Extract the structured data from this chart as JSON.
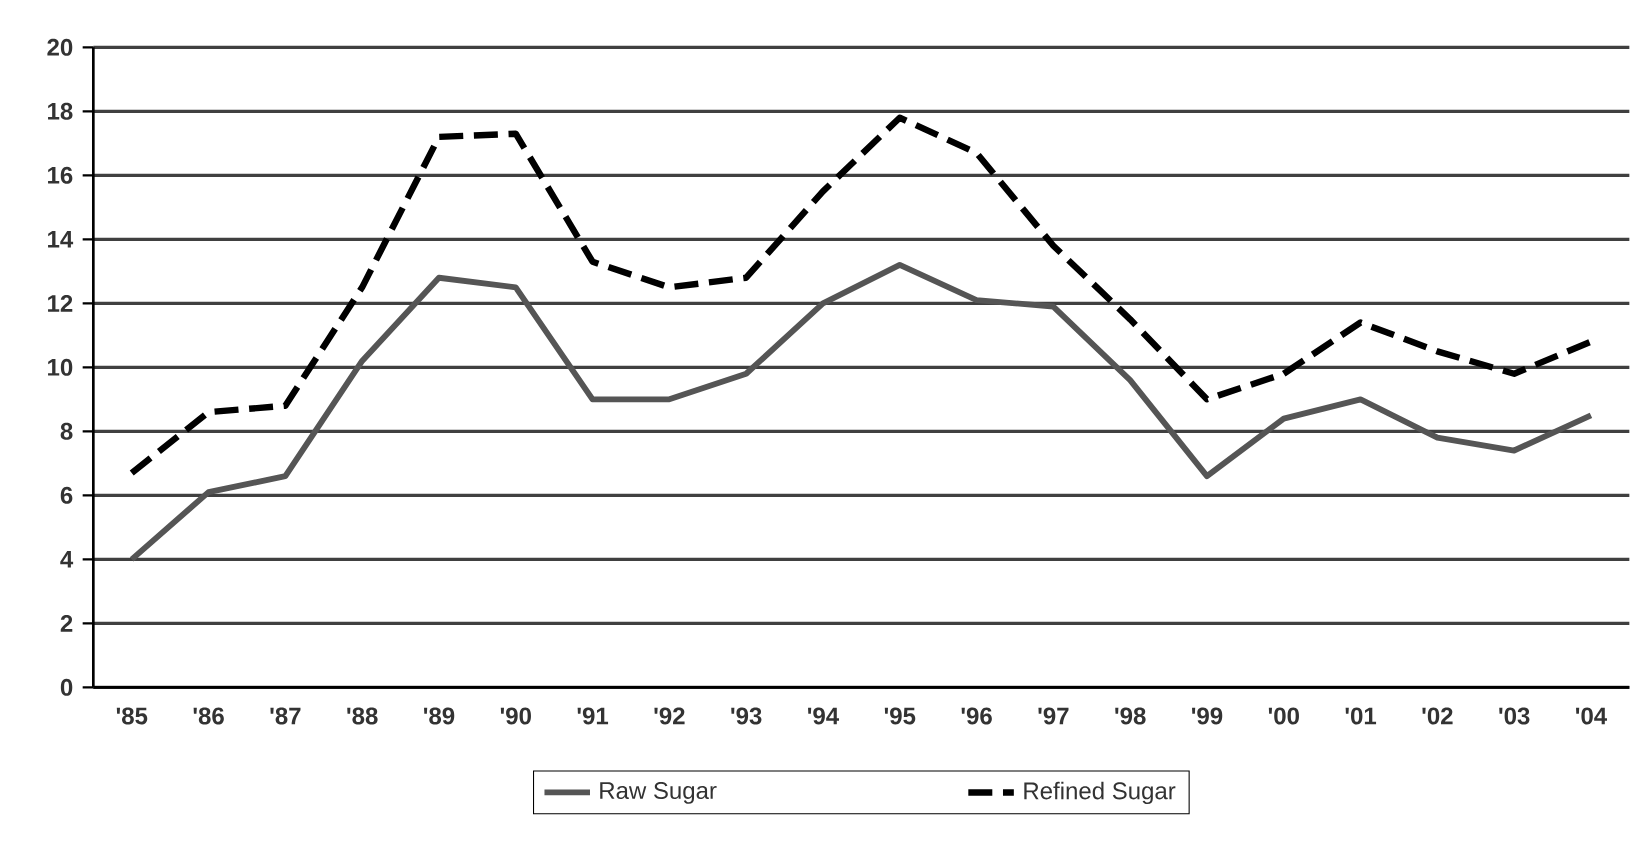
{
  "chart_data": {
    "type": "line",
    "categories": [
      "'85",
      "'86",
      "'87",
      "'88",
      "'89",
      "'90",
      "'91",
      "'92",
      "'93",
      "'94",
      "'95",
      "'96",
      "'97",
      "'98",
      "'99",
      "'00",
      "'01",
      "'02",
      "'03",
      "'04"
    ],
    "series": [
      {
        "name": "Raw Sugar",
        "color": "#555555",
        "line_style": "solid",
        "values": [
          4.0,
          6.1,
          6.6,
          10.2,
          12.8,
          12.5,
          9.0,
          9.0,
          9.8,
          12.0,
          13.2,
          12.1,
          11.9,
          9.6,
          6.6,
          8.4,
          9.0,
          7.8,
          7.4,
          8.5
        ]
      },
      {
        "name": "Refined Sugar",
        "color": "#000000",
        "line_style": "dashed",
        "values": [
          6.7,
          8.6,
          8.8,
          12.5,
          17.2,
          17.3,
          13.3,
          12.5,
          12.8,
          15.5,
          17.8,
          16.7,
          13.8,
          11.5,
          9.0,
          9.8,
          11.4,
          10.5,
          9.8,
          10.8
        ]
      }
    ],
    "ylim": [
      0,
      20
    ],
    "yticks": [
      0,
      2,
      4,
      6,
      8,
      10,
      12,
      14,
      16,
      18,
      20
    ],
    "grid": "y",
    "legend": "bottom",
    "marker": "none"
  }
}
